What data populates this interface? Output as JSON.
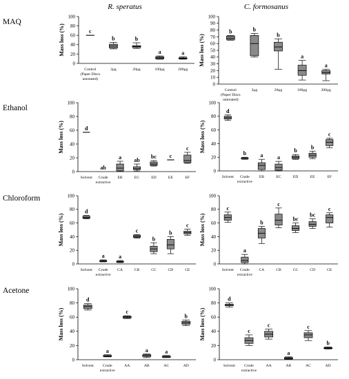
{
  "column_titles": [
    "R. speratus",
    "C. formosanus"
  ],
  "row_labels": [
    "MAQ",
    "Ethanol",
    "Chloroform",
    "Acetone"
  ],
  "colors": {
    "box_fill": "#8a8a8a",
    "stroke": "#000000"
  },
  "chart_data": [
    {
      "type": "box",
      "panel": "MAQ - R. speratus",
      "ylabel": "Mass loss (%)",
      "ylim": [
        0,
        100
      ],
      "yticks": [
        0,
        20,
        40,
        60,
        80,
        100
      ],
      "categories": [
        "Control (Paper Discs untreated)",
        "2μg",
        "20μg",
        "100μg",
        "200μg"
      ],
      "boxes": [
        {
          "min": 60,
          "q1": 60,
          "median": 60,
          "q3": 60,
          "max": 60,
          "letter": "c"
        },
        {
          "min": 31,
          "q1": 33,
          "median": 37,
          "q3": 41,
          "max": 45,
          "letter": "b"
        },
        {
          "min": 32,
          "q1": 34,
          "median": 36,
          "q3": 38,
          "max": 44,
          "letter": "b"
        },
        {
          "min": 9,
          "q1": 10,
          "median": 12,
          "q3": 14,
          "max": 16,
          "letter": "a"
        },
        {
          "min": 9,
          "q1": 10,
          "median": 11,
          "q3": 12,
          "max": 14,
          "letter": "a"
        }
      ]
    },
    {
      "type": "box",
      "panel": "MAQ - C. formosanus",
      "ylabel": "Mass loss (%)",
      "ylim": [
        0,
        100
      ],
      "yticks": [
        0,
        10,
        20,
        30,
        40,
        50,
        60,
        70,
        80,
        90,
        100
      ],
      "categories": [
        "Control (Paper Discs untreated)",
        "2μg",
        "20μg",
        "100μg",
        "200μg"
      ],
      "boxes": [
        {
          "min": 65,
          "q1": 66,
          "median": 68,
          "q3": 71,
          "max": 72,
          "letter": "b"
        },
        {
          "min": 40,
          "q1": 42,
          "median": 60,
          "q3": 72,
          "max": 75,
          "letter": "b"
        },
        {
          "min": 22,
          "q1": 49,
          "median": 55,
          "q3": 62,
          "max": 67,
          "letter": "b"
        },
        {
          "min": 6,
          "q1": 13,
          "median": 20,
          "q3": 28,
          "max": 35,
          "letter": "a"
        },
        {
          "min": 5,
          "q1": 15,
          "median": 17,
          "q3": 20,
          "max": 22,
          "letter": "a"
        }
      ]
    },
    {
      "type": "box",
      "panel": "Ethanol - R. speratus",
      "ylabel": "Mass loss (%)",
      "ylim": [
        0,
        100
      ],
      "yticks": [
        0,
        20,
        40,
        60,
        80,
        100
      ],
      "categories": [
        "Solvent",
        "Crude extractive",
        "EB",
        "EC",
        "ED",
        "EE",
        "EF"
      ],
      "boxes": [
        {
          "min": 57,
          "q1": 57,
          "median": 57,
          "q3": 57,
          "max": 57,
          "letter": "d"
        },
        null,
        {
          "min": 0,
          "q1": 1,
          "median": 5,
          "q3": 11,
          "max": 15,
          "letter": "a"
        },
        {
          "min": 1,
          "q1": 3,
          "median": 4,
          "q3": 7,
          "max": 11,
          "letter": "ab"
        },
        {
          "min": 8,
          "q1": 9,
          "median": 11,
          "q3": 14,
          "max": 16,
          "letter": "bc"
        },
        {
          "min": 17,
          "q1": 17,
          "median": 17,
          "q3": 17,
          "max": 17,
          "letter": "c"
        },
        {
          "min": 12,
          "q1": 13,
          "median": 16,
          "q3": 24,
          "max": 28,
          "letter": "c"
        }
      ],
      "extra_labels": [
        {
          "category": 1,
          "value": 0,
          "letter": "ab"
        }
      ]
    },
    {
      "type": "box",
      "panel": "Ethanol - C. formosanus",
      "ylabel": "Mass loss (%)",
      "ylim": [
        0,
        100
      ],
      "yticks": [
        0,
        20,
        40,
        60,
        80,
        100
      ],
      "categories": [
        "Solvent",
        "Crude extractive",
        "EB",
        "EC",
        "ED",
        "EE",
        "EF"
      ],
      "boxes": [
        {
          "min": 74,
          "q1": 76,
          "median": 78,
          "q3": 80,
          "max": 82,
          "letter": "d"
        },
        {
          "min": 17,
          "q1": 18,
          "median": 19,
          "q3": 19,
          "max": 20,
          "letter": "b"
        },
        {
          "min": 0,
          "q1": 2,
          "median": 8,
          "q3": 12,
          "max": 17,
          "letter": "a"
        },
        {
          "min": 0,
          "q1": 1,
          "median": 5,
          "q3": 10,
          "max": 14,
          "letter": "a"
        },
        {
          "min": 17,
          "q1": 18,
          "median": 20,
          "q3": 22,
          "max": 24,
          "letter": "b"
        },
        {
          "min": 18,
          "q1": 20,
          "median": 23,
          "q3": 26,
          "max": 29,
          "letter": "b"
        },
        {
          "min": 34,
          "q1": 37,
          "median": 42,
          "q3": 46,
          "max": 48,
          "letter": "c"
        }
      ]
    },
    {
      "type": "box",
      "panel": "Chloroform - R. speratus",
      "ylabel": "Mass loss (%)",
      "ylim": [
        0,
        100
      ],
      "yticks": [
        0,
        20,
        40,
        60,
        80,
        100
      ],
      "categories": [
        "Solvent",
        "Crude extractive",
        "CA",
        "CB",
        "CC",
        "CD",
        "CE"
      ],
      "boxes": [
        {
          "min": 66,
          "q1": 67,
          "median": 68,
          "q3": 70,
          "max": 71,
          "letter": "d"
        },
        {
          "min": 3,
          "q1": 3.5,
          "median": 4,
          "q3": 5,
          "max": 6,
          "letter": "a"
        },
        {
          "min": 2,
          "q1": 2.5,
          "median": 3,
          "q3": 4,
          "max": 5,
          "letter": "a"
        },
        {
          "min": 38,
          "q1": 39,
          "median": 40,
          "q3": 42,
          "max": 43,
          "letter": "c"
        },
        {
          "min": 15,
          "q1": 18,
          "median": 22,
          "q3": 26,
          "max": 31,
          "letter": "b"
        },
        {
          "min": 15,
          "q1": 22,
          "median": 28,
          "q3": 36,
          "max": 40,
          "letter": "b"
        },
        {
          "min": 42,
          "q1": 44,
          "median": 46,
          "q3": 48,
          "max": 51,
          "letter": "c"
        }
      ]
    },
    {
      "type": "box",
      "panel": "Chloroform - C. formosanus",
      "ylabel": "Mass loss (%)",
      "ylim": [
        0,
        100
      ],
      "yticks": [
        0,
        20,
        40,
        60,
        80,
        100
      ],
      "categories": [
        "Solvent",
        "Crude extractive",
        "CA",
        "CB",
        "CC",
        "CD",
        "CE"
      ],
      "boxes": [
        {
          "min": 61,
          "q1": 64,
          "median": 68,
          "q3": 72,
          "max": 76,
          "letter": "c"
        },
        {
          "min": 0,
          "q1": 2,
          "median": 5,
          "q3": 10,
          "max": 14,
          "letter": "a"
        },
        {
          "min": 30,
          "q1": 38,
          "median": 45,
          "q3": 52,
          "max": 55,
          "letter": "b"
        },
        {
          "min": 53,
          "q1": 57,
          "median": 64,
          "q3": 73,
          "max": 82,
          "letter": "c"
        },
        {
          "min": 46,
          "q1": 49,
          "median": 52,
          "q3": 56,
          "max": 60,
          "letter": "bc"
        },
        {
          "min": 52,
          "q1": 55,
          "median": 58,
          "q3": 62,
          "max": 66,
          "letter": "bc"
        },
        {
          "min": 54,
          "q1": 60,
          "median": 68,
          "q3": 72,
          "max": 75,
          "letter": "c"
        }
      ]
    },
    {
      "type": "box",
      "panel": "Acetone - R. speratus",
      "ylabel": "Mass loss (%)",
      "ylim": [
        0,
        100
      ],
      "yticks": [
        0,
        20,
        40,
        60,
        80,
        100
      ],
      "categories": [
        "Solvent",
        "Crude extractive",
        "AA",
        "AB",
        "AC",
        "AD"
      ],
      "boxes": [
        {
          "min": 70,
          "q1": 72,
          "median": 75,
          "q3": 77,
          "max": 79,
          "letter": "d"
        },
        {
          "min": 4,
          "q1": 4.5,
          "median": 5,
          "q3": 6,
          "max": 7,
          "letter": "a"
        },
        {
          "min": 58,
          "q1": 59,
          "median": 60,
          "q3": 61,
          "max": 62,
          "letter": "c"
        },
        {
          "min": 3,
          "q1": 4.5,
          "median": 6,
          "q3": 7,
          "max": 8,
          "letter": "a"
        },
        {
          "min": 3,
          "q1": 3.5,
          "median": 4,
          "q3": 5,
          "max": 6,
          "letter": "a"
        },
        {
          "min": 48,
          "q1": 50,
          "median": 52,
          "q3": 54,
          "max": 56,
          "letter": "b"
        }
      ]
    },
    {
      "type": "box",
      "panel": "Acetone - C. formosanus",
      "ylabel": "Mass loss (%)",
      "ylim": [
        0,
        100
      ],
      "yticks": [
        0,
        20,
        40,
        60,
        80,
        100
      ],
      "categories": [
        "Solvent",
        "Crude extractive",
        "AA",
        "AB",
        "AC",
        "AD"
      ],
      "boxes": [
        {
          "min": 74,
          "q1": 76,
          "median": 77,
          "q3": 78,
          "max": 80,
          "letter": "d"
        },
        {
          "min": 20,
          "q1": 23,
          "median": 27,
          "q3": 31,
          "max": 35,
          "letter": "c"
        },
        {
          "min": 29,
          "q1": 32,
          "median": 36,
          "q3": 40,
          "max": 43,
          "letter": "c"
        },
        {
          "min": 0.5,
          "q1": 1,
          "median": 2,
          "q3": 3,
          "max": 4,
          "letter": "a"
        },
        {
          "min": 27,
          "q1": 31,
          "median": 35,
          "q3": 38,
          "max": 41,
          "letter": "c"
        },
        {
          "min": 15,
          "q1": 16,
          "median": 16.5,
          "q3": 17,
          "max": 18,
          "letter": "b"
        }
      ]
    }
  ]
}
